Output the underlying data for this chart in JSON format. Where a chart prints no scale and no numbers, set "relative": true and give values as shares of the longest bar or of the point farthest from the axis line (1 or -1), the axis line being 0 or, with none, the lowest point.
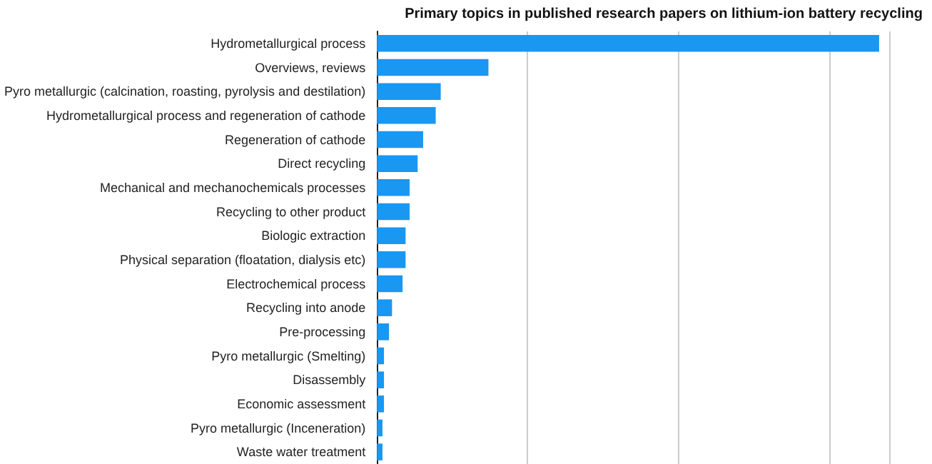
{
  "chart_data": {
    "type": "bar",
    "orientation": "horizontal",
    "relative": true,
    "title": "Primary topics in published research papers on lithium-ion battery recycling",
    "categories": [
      "Hydrometallurgical process",
      "Overviews, reviews",
      "Pyro metallurgic (calcination, roasting, pyrolysis and destilation)",
      "Hydrometallurgical process and regeneration of cathode",
      "Regeneration of cathode",
      "Direct recycling",
      "Mechanical and mechanochemicals processes",
      "Recycling to other product",
      "Biologic extraction",
      "Physical separation (floatation, dialysis etc)",
      "Electrochemical process",
      "Recycling into anode",
      "Pre-processing",
      "Pyro metallurgic (Smelting)",
      "Disassembly",
      "Economic assessment",
      "Pyro metallurgic (Inceneration)",
      "Waste water treatment"
    ],
    "values": [
      1,
      0.222,
      0.127,
      0.117,
      0.092,
      0.081,
      0.065,
      0.065,
      0.057,
      0.057,
      0.051,
      0.03,
      0.024,
      0.014,
      0.014,
      0.014,
      0.011,
      0.011
    ],
    "color": "#1a97f0",
    "grid": "x"
  }
}
